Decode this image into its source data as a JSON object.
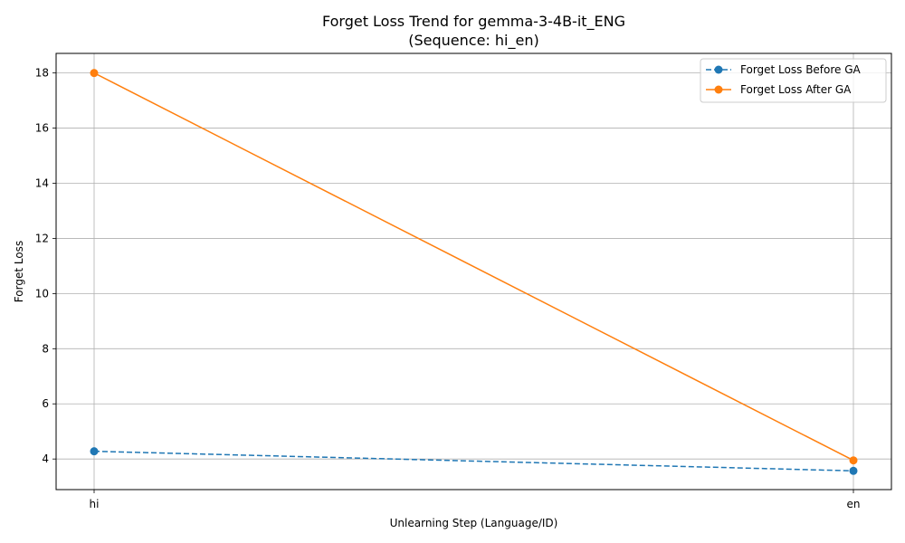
{
  "chart_data": {
    "type": "line",
    "title_line1": "Forget Loss Trend for gemma-3-4B-it_ENG",
    "title_line2": "(Sequence: hi_en)",
    "xlabel": "Unlearning Step (Language/ID)",
    "ylabel": "Forget Loss",
    "categories": [
      "hi",
      "en"
    ],
    "ylim": [
      2.89,
      18.71
    ],
    "yticks": [
      4,
      6,
      8,
      10,
      12,
      14,
      16,
      18
    ],
    "grid": true,
    "legend_position": "top-right",
    "series": [
      {
        "name": "Forget Loss Before GA",
        "values": [
          4.28,
          3.57
        ],
        "color": "#1f77b4",
        "dashed": true
      },
      {
        "name": "Forget Loss After GA",
        "values": [
          18.0,
          3.95
        ],
        "color": "#ff7f0e",
        "dashed": false
      }
    ]
  }
}
